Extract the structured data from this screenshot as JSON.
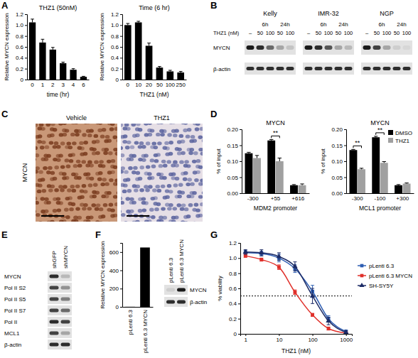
{
  "panel_labels": [
    "A",
    "B",
    "C",
    "D",
    "E",
    "F",
    "G"
  ],
  "chart_data": [
    {
      "type": "bar",
      "title": "THZ1 (50nM)",
      "x_label": "time (hr)",
      "y_label": "Relative MYCN expression",
      "categories": [
        "0",
        "1",
        "2",
        "3",
        "4",
        "6"
      ],
      "values": [
        1.05,
        0.68,
        0.55,
        0.3,
        0.18,
        0.05
      ],
      "errors": [
        0.06,
        0.06,
        0.04,
        0.02,
        0.02,
        0.01
      ],
      "color": "#000000",
      "ylim": [
        0,
        1.2
      ],
      "yticks": [
        0,
        0.2,
        0.4,
        0.6,
        0.8,
        {
          "value": 1,
          "label": "1.0"
        },
        1.2
      ]
    },
    {
      "type": "bar",
      "title": "Time (6 hr)",
      "x_label": "THZ1 (nM)",
      "y_label": "Relative MYCN expression",
      "categories": [
        "0",
        "10",
        "20",
        "50",
        "100",
        "250"
      ],
      "values": [
        1.0,
        1.05,
        0.62,
        0.22,
        0.15,
        0.13
      ],
      "errors": [
        0.03,
        0.02,
        0.05,
        0.02,
        0.02,
        0.02
      ],
      "color": "#000000",
      "ylim": [
        0,
        1.2
      ],
      "yticks": [
        0,
        0.2,
        0.4,
        0.6,
        0.8,
        {
          "value": 1,
          "label": "1.0"
        },
        1.2
      ]
    },
    {
      "type": "bar",
      "title": "MYCN",
      "x_label": "MDM2 promoter",
      "y_label": "% of input",
      "categories": [
        "-300",
        "+55",
        "+616"
      ],
      "series": [
        {
          "name": "DMSO",
          "color": "#000000",
          "values": [
            0.125,
            0.165,
            0.025
          ],
          "errors": [
            0.003,
            0.003,
            0.002
          ]
        },
        {
          "name": "THZ1",
          "color": "#a0a0a0",
          "values": [
            0.11,
            0.1,
            0.025
          ],
          "errors": [
            0.008,
            0.01,
            0.004
          ]
        }
      ],
      "ylim": [
        0,
        0.2
      ],
      "yticks": [
        {
          "value": 0,
          "label": "0.00"
        },
        0.05,
        {
          "value": 0.1,
          "label": "0.10"
        },
        0.15,
        {
          "value": 0.2,
          "label": "0.20"
        }
      ],
      "legend": "none",
      "annotations": [
        {
          "text": "**",
          "category": 1
        }
      ]
    },
    {
      "type": "bar",
      "title": "MYCN",
      "x_label": "MCL1 promoter",
      "y_label": "% of input",
      "categories": [
        "-300",
        "-100",
        "+300"
      ],
      "series": [
        {
          "name": "DMSO",
          "color": "#000000",
          "values": [
            0.135,
            0.175,
            0.025
          ],
          "errors": [
            0.002,
            0.003,
            0.002
          ]
        },
        {
          "name": "THZ1",
          "color": "#a0a0a0",
          "values": [
            0.075,
            0.095,
            0.03
          ],
          "errors": [
            0.003,
            0.004,
            0.002
          ]
        }
      ],
      "ylim": [
        0,
        0.2
      ],
      "yticks": [
        {
          "value": 0,
          "label": "0.00"
        },
        0.05,
        {
          "value": 0.1,
          "label": "0.10"
        },
        0.15,
        {
          "value": 0.2,
          "label": "0.20"
        }
      ],
      "legend": "upper right",
      "annotations": [
        {
          "text": "**",
          "category": 0
        },
        {
          "text": "**",
          "category": 1
        }
      ]
    },
    {
      "type": "bar",
      "y_label": "Relative MYCN expression",
      "categories": [
        "pLenti 6.3",
        "pLenti 6.3 MYCN"
      ],
      "values": [
        1,
        650
      ],
      "color": "#000000",
      "ylim": [
        0,
        700
      ],
      "yticks": [
        0,
        200,
        400,
        600
      ]
    },
    {
      "type": "line",
      "log": "x",
      "x_label": "THZ1 (nM)",
      "y_label": "% viability",
      "x": [
        1,
        3,
        10,
        30,
        100,
        300,
        1000
      ],
      "xlim": [
        0.7,
        1500
      ],
      "xticks": [
        1,
        10,
        100,
        1000
      ],
      "ylim": [
        0,
        1.2
      ],
      "yticks": [
        0,
        0.2,
        0.4,
        0.6,
        0.8,
        {
          "value": 1,
          "label": "1.0"
        },
        1.2
      ],
      "hline": 0.5,
      "legend": "right",
      "series": [
        {
          "name": "pLenti 6.3",
          "color": "#2f5fb3",
          "marker": "square",
          "line_style": "solid",
          "values": [
            1.07,
            1.06,
            1.0,
            0.86,
            0.56,
            0.2,
            0.03
          ],
          "errors": [
            0.03,
            0.03,
            0.05,
            0.05,
            0.08,
            0.04,
            0.02
          ]
        },
        {
          "name": "pLenti 6.3 MYCN",
          "color": "#e0302a",
          "marker": "square",
          "line_style": "solid",
          "values": [
            1.03,
            0.98,
            0.88,
            0.55,
            0.25,
            0.07,
            0.01
          ],
          "errors": [
            0.02,
            0.02,
            0.03,
            0.03,
            0.02,
            0.02,
            0.01
          ]
        },
        {
          "name": "SH-SY5Y",
          "color": "#1c2b66",
          "marker": "triangle",
          "line_style": "solid",
          "values": [
            1.08,
            1.07,
            1.02,
            0.89,
            0.5,
            0.17,
            0.02
          ],
          "errors": [
            0.03,
            0.04,
            0.05,
            0.06,
            0.1,
            0.05,
            0.02
          ]
        }
      ]
    }
  ],
  "blot_B": {
    "treatment_label": "THZ1 (nM)",
    "groups": [
      {
        "name": "Kelly",
        "times": [
          "6h",
          "24h"
        ],
        "lanes": [
          "–",
          "50",
          "100",
          "50",
          "100"
        ]
      },
      {
        "name": "IMR-32",
        "times": [
          "6h",
          "24h"
        ],
        "lanes": [
          "–",
          "50",
          "100",
          "50",
          "100"
        ]
      },
      {
        "name": "NGP",
        "times": [
          "6h",
          "24h"
        ],
        "lanes": [
          "–",
          "50",
          "100",
          "50",
          "100"
        ]
      }
    ],
    "rows": [
      {
        "name": "MYCN",
        "bands": [
          [
            1,
            0.9,
            0.6,
            0.3,
            0.15
          ],
          [
            1,
            0.9,
            0.7,
            0.3,
            0.2
          ],
          [
            1,
            0.8,
            0.3,
            0.1,
            0.05
          ]
        ]
      },
      {
        "name": "β-actin",
        "bands": [
          [
            0.9,
            0.9,
            0.9,
            0.9,
            0.9
          ],
          [
            0.9,
            0.9,
            0.9,
            0.9,
            0.9
          ],
          [
            0.9,
            0.9,
            0.9,
            0.9,
            0.9
          ]
        ]
      }
    ]
  },
  "ihc_C": {
    "row_label": "MYCN",
    "columns": [
      "Vehicle",
      "THZ1"
    ]
  },
  "blot_E": {
    "columns": [
      "shGFP",
      "shMYCN"
    ],
    "rows": [
      {
        "name": "MYCN",
        "bands": [
          0.9,
          0.2
        ]
      },
      {
        "name": "Pol II S2",
        "bands": [
          0.8,
          0.4
        ]
      },
      {
        "name": "Pol II S5",
        "bands": [
          0.8,
          0.5
        ]
      },
      {
        "name": "Pol II S7",
        "bands": [
          0.8,
          0.6
        ]
      },
      {
        "name": "Pol II",
        "bands": [
          0.9,
          0.8
        ]
      },
      {
        "name": "MCL1",
        "bands": [
          0.8,
          0.3
        ]
      },
      {
        "name": "β-actin",
        "bands": [
          0.9,
          0.9
        ]
      }
    ]
  },
  "blot_F": {
    "columns": [
      "pLenti 6.3",
      "pLenti 6.3 MYCN"
    ],
    "rows": [
      {
        "name": "MYCN",
        "bands": [
          0.1,
          1.0
        ]
      },
      {
        "name": "β-actin",
        "bands": [
          0.9,
          0.9
        ]
      }
    ]
  }
}
